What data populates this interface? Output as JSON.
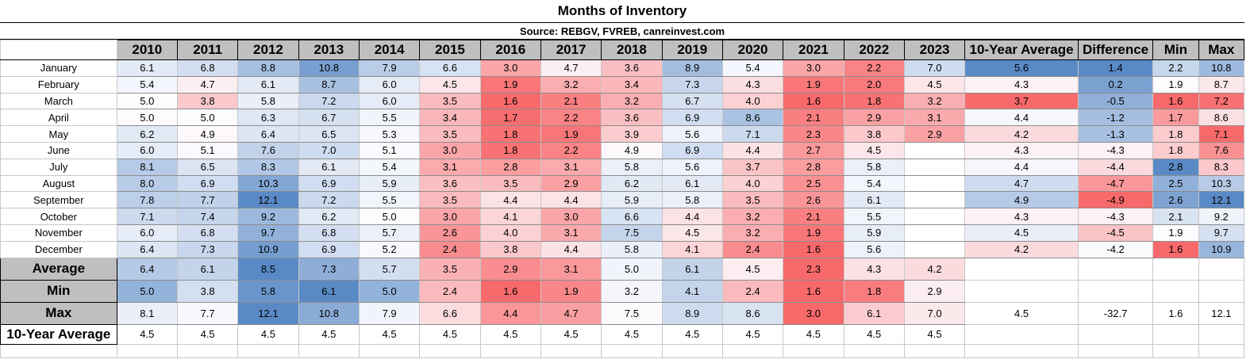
{
  "title": "Months of Inventory",
  "source": "Source: REBGV, FVREB, canreinvest.com",
  "header": {
    "years": [
      "2010",
      "2011",
      "2012",
      "2013",
      "2014",
      "2015",
      "2016",
      "2017",
      "2018",
      "2019",
      "2020",
      "2021",
      "2022",
      "2023"
    ],
    "extra": [
      "10-Year Average",
      "Difference",
      "Min",
      "Max"
    ]
  },
  "months": [
    {
      "label": "January",
      "years": [
        "6.1",
        "6.8",
        "8.8",
        "10.8",
        "7.9",
        "6.6",
        "3.0",
        "4.7",
        "3.6",
        "8.9",
        "5.4",
        "3.0",
        "2.2",
        "7.0"
      ],
      "extra": [
        "5.6",
        "1.4",
        "2.2",
        "10.8"
      ]
    },
    {
      "label": "February",
      "years": [
        "5.4",
        "4.7",
        "6.1",
        "8.7",
        "6.0",
        "4.5",
        "1.9",
        "3.2",
        "3.4",
        "7.3",
        "4.3",
        "1.9",
        "2.0",
        "4.5"
      ],
      "extra": [
        "4.3",
        "0.2",
        "1.9",
        "8.7"
      ]
    },
    {
      "label": "March",
      "years": [
        "5.0",
        "3.8",
        "5.8",
        "7.2",
        "6.0",
        "3.5",
        "1.6",
        "2.1",
        "3.2",
        "6.7",
        "4.0",
        "1.6",
        "1.8",
        "3.2"
      ],
      "extra": [
        "3.7",
        "-0.5",
        "1.6",
        "7.2"
      ]
    },
    {
      "label": "April",
      "years": [
        "5.0",
        "5.0",
        "6.3",
        "6.7",
        "5.5",
        "3.4",
        "1.7",
        "2.2",
        "3.6",
        "6.9",
        "8.6",
        "2.1",
        "2.9",
        "3.1"
      ],
      "extra": [
        "4.4",
        "-1.2",
        "1.7",
        "8.6"
      ]
    },
    {
      "label": "May",
      "years": [
        "6.2",
        "4.9",
        "6.4",
        "6.5",
        "5.3",
        "3.5",
        "1.8",
        "1.9",
        "3.9",
        "5.6",
        "7.1",
        "2.3",
        "3.8",
        "2.9"
      ],
      "extra": [
        "4.2",
        "-1.3",
        "1.8",
        "7.1"
      ]
    },
    {
      "label": "June",
      "years": [
        "6.0",
        "5.1",
        "7.6",
        "7.0",
        "5.1",
        "3.0",
        "1.8",
        "2.2",
        "4.9",
        "6.9",
        "4.4",
        "2.7",
        "4.5",
        ""
      ],
      "extra": [
        "4.3",
        "-4.3",
        "1.8",
        "7.6"
      ]
    },
    {
      "label": "July",
      "years": [
        "8.1",
        "6.5",
        "8.3",
        "6.1",
        "5.4",
        "3.1",
        "2.8",
        "3.1",
        "5.8",
        "5.6",
        "3.7",
        "2.8",
        "5.8",
        ""
      ],
      "extra": [
        "4.4",
        "-4.4",
        "2.8",
        "8.3"
      ]
    },
    {
      "label": "August",
      "years": [
        "8.0",
        "6.9",
        "10.3",
        "6.9",
        "5.9",
        "3.6",
        "3.5",
        "2.9",
        "6.2",
        "6.1",
        "4.0",
        "2.5",
        "5.4",
        ""
      ],
      "extra": [
        "4.7",
        "-4.7",
        "2.5",
        "10.3"
      ]
    },
    {
      "label": "September",
      "years": [
        "7.8",
        "7.7",
        "12.1",
        "7.2",
        "5.5",
        "3.5",
        "4.4",
        "4.4",
        "5.9",
        "5.8",
        "3.5",
        "2.6",
        "6.1",
        ""
      ],
      "extra": [
        "4.9",
        "-4.9",
        "2.6",
        "12.1"
      ]
    },
    {
      "label": "October",
      "years": [
        "7.1",
        "7.4",
        "9.2",
        "6.2",
        "5.0",
        "3.0",
        "4.1",
        "3.0",
        "6.6",
        "4.4",
        "3.2",
        "2.1",
        "5.5",
        ""
      ],
      "extra": [
        "4.3",
        "-4.3",
        "2.1",
        "9.2"
      ]
    },
    {
      "label": "November",
      "years": [
        "6.0",
        "6.8",
        "9.7",
        "6.8",
        "5.7",
        "2.6",
        "4.0",
        "3.1",
        "7.5",
        "4.5",
        "3.2",
        "1.9",
        "5.9",
        ""
      ],
      "extra": [
        "4.5",
        "-4.5",
        "1.9",
        "9.7"
      ]
    },
    {
      "label": "December",
      "years": [
        "6.4",
        "7.3",
        "10.9",
        "6.9",
        "5.2",
        "2.4",
        "3.8",
        "4.4",
        "5.8",
        "4.1",
        "2.4",
        "1.6",
        "5.6",
        ""
      ],
      "extra": [
        "4.2",
        "-4.2",
        "1.6",
        "10.9"
      ]
    }
  ],
  "summary": [
    {
      "label": "Average",
      "years": [
        "6.4",
        "6.1",
        "8.5",
        "7.3",
        "5.7",
        "3.5",
        "2.9",
        "3.1",
        "5.0",
        "6.1",
        "4.5",
        "2.3",
        "4.3",
        "4.2"
      ],
      "extra": [
        "",
        "",
        "",
        ""
      ]
    },
    {
      "label": "Min",
      "years": [
        "5.0",
        "3.8",
        "5.8",
        "6.1",
        "5.0",
        "2.4",
        "1.6",
        "1.9",
        "3.2",
        "4.1",
        "2.4",
        "1.6",
        "1.8",
        "2.9"
      ],
      "extra": [
        "",
        "",
        "",
        ""
      ]
    },
    {
      "label": "Max",
      "years": [
        "8.1",
        "7.7",
        "12.1",
        "10.8",
        "7.9",
        "6.6",
        "4.4",
        "4.7",
        "7.5",
        "8.9",
        "8.6",
        "3.0",
        "6.1",
        "7.0"
      ],
      "extra": [
        "4.5",
        "-32.7",
        "1.6",
        "12.1"
      ]
    }
  ],
  "ten_year_row": {
    "label": "10-Year Average",
    "years": [
      "4.5",
      "4.5",
      "4.5",
      "4.5",
      "4.5",
      "4.5",
      "4.5",
      "4.5",
      "4.5",
      "4.5",
      "4.5",
      "4.5",
      "4.5",
      "4.5"
    ]
  },
  "heatmap_colors": {
    "low": "#f8696b",
    "mid": "#fcfcff",
    "high": "#5a8ac6"
  }
}
